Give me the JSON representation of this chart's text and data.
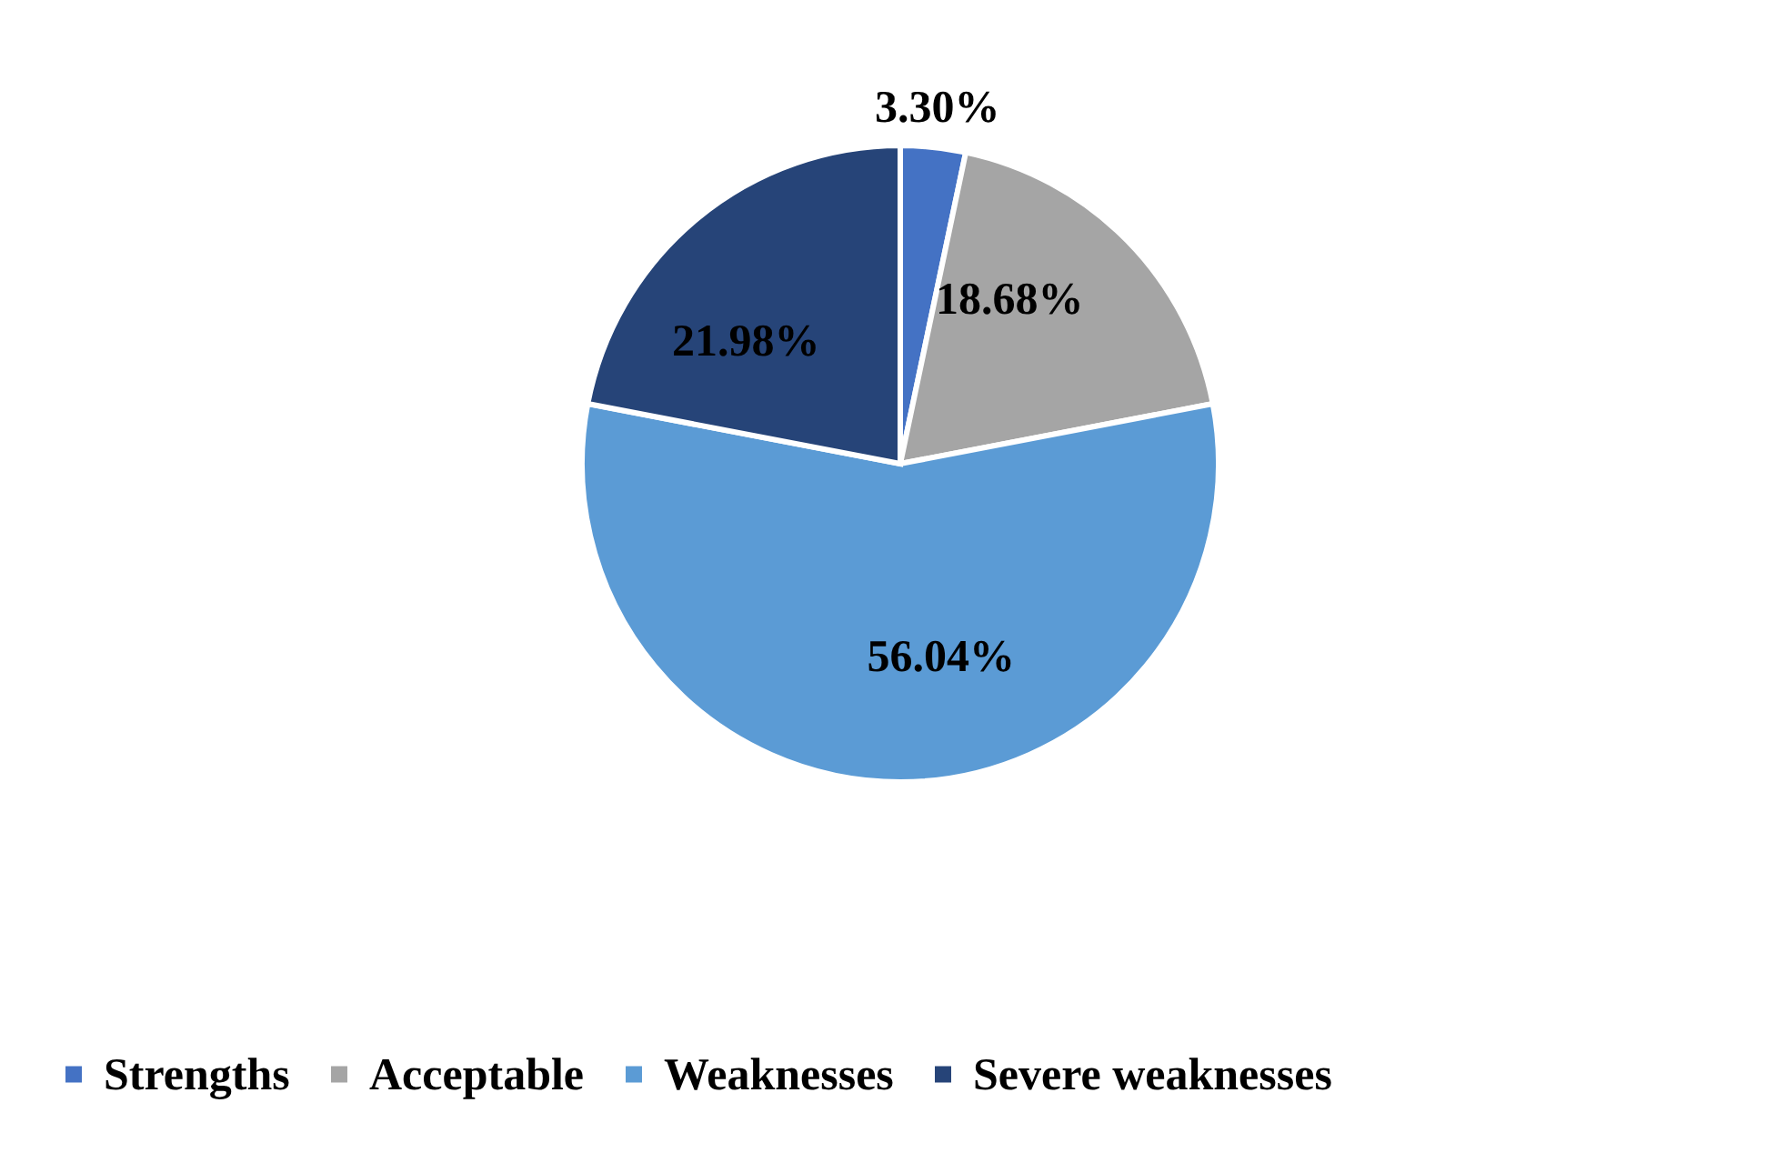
{
  "chart_data": {
    "type": "pie",
    "categories": [
      "Strengths",
      "Acceptable",
      "Weaknesses",
      "Severe weaknesses"
    ],
    "values": [
      3.3,
      18.68,
      56.04,
      21.98
    ],
    "colors": [
      "#4472c4",
      "#a5a5a5",
      "#5b9bd5",
      "#264478"
    ],
    "value_labels": [
      "3.30%",
      "18.68%",
      "56.04%",
      "21.98%"
    ],
    "legend": "bottom"
  }
}
